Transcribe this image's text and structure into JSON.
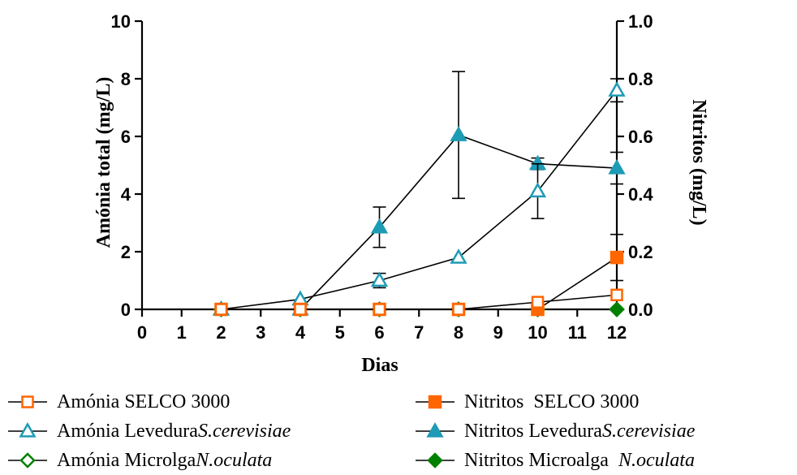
{
  "chart_data": {
    "type": "line",
    "xlabel": "Dias",
    "ylabel_left": "Amónia total (mg/L)",
    "ylabel_right": "Nitritos (mg/L)",
    "x_ticks": [
      "0",
      "1",
      "2",
      "3",
      "4",
      "5",
      "6",
      "7",
      "8",
      "9",
      "10",
      "11",
      "12"
    ],
    "y_left_ticks": [
      "0",
      "2",
      "4",
      "6",
      "8",
      "10"
    ],
    "y_right_ticks": [
      "0.0",
      "0.2",
      "0.4",
      "0.6",
      "0.8",
      "1.0"
    ],
    "xlim": [
      0,
      12
    ],
    "ylim_left": [
      0,
      10
    ],
    "ylim_right": [
      0,
      1.0
    ],
    "x": [
      2,
      4,
      6,
      8,
      10,
      12
    ],
    "series": [
      {
        "name": "Amónia SELCO 3000",
        "axis": "left",
        "marker": "square-open",
        "color": "#ff6600",
        "values": [
          0,
          0,
          0,
          0,
          0.25,
          0.5
        ],
        "err": [
          0,
          0,
          0,
          0,
          0,
          0
        ]
      },
      {
        "name": "Amónia Levedura ",
        "name_italic": "S.cerevisiae",
        "axis": "left",
        "marker": "triangle-open",
        "color": "#1e9bb5",
        "values": [
          0,
          0.35,
          1.0,
          1.8,
          4.1,
          7.6
        ],
        "err": [
          0,
          0,
          0.25,
          0,
          0.95,
          0.4
        ]
      },
      {
        "name": "Amónia Microlga ",
        "name_italic": "N.oculata",
        "axis": "left",
        "marker": "diamond-open",
        "color": "#008000",
        "values": [
          0,
          0,
          0,
          0,
          0,
          0
        ],
        "err": [
          0,
          0,
          0,
          0,
          0,
          0
        ]
      },
      {
        "name": "Nitritos  SELCO 3000",
        "axis": "right",
        "marker": "square-filled",
        "color": "#ff6600",
        "values": [
          0,
          0,
          0,
          0,
          0,
          0.18
        ],
        "err": [
          0,
          0,
          0,
          0,
          0,
          0.08
        ]
      },
      {
        "name": "Nitritos Levedura ",
        "name_italic": "S.cerevisiae",
        "axis": "right",
        "marker": "triangle-filled",
        "color": "#1e9bb5",
        "values": [
          0,
          0,
          0.285,
          0.605,
          0.505,
          0.49
        ],
        "err": [
          0,
          0,
          0.07,
          0.22,
          0.02,
          0.055
        ]
      },
      {
        "name": "Nitritos Microalga  ",
        "name_italic": "N.oculata",
        "axis": "right",
        "marker": "diamond-filled",
        "color": "#008000",
        "values": [
          0,
          0,
          0,
          0,
          0,
          0
        ],
        "err": [
          0,
          0,
          0,
          0,
          0,
          0
        ]
      }
    ]
  }
}
